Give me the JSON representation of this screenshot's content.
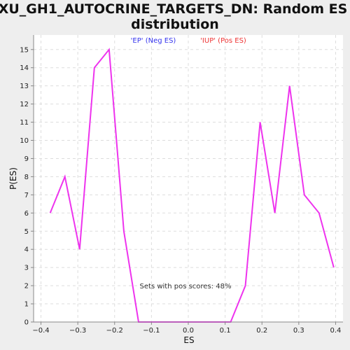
{
  "chart_data": {
    "type": "line",
    "title_line1": "XU_GH1_AUTOCRINE_TARGETS_DN: Random ES",
    "title_line2": "distribution",
    "legend_neg": "'EP' (Neg ES)",
    "legend_pos": "'IUP' (Pos ES)",
    "xlabel": "ES",
    "ylabel": "P(ES)",
    "annotation": "Sets with pos scores: 48%",
    "xlim": [
      -0.42,
      0.42
    ],
    "ylim": [
      0,
      15.8
    ],
    "grid": true,
    "x_ticks": [
      {
        "value": -0.4,
        "label": "−0.4"
      },
      {
        "value": -0.3,
        "label": "−0.3"
      },
      {
        "value": -0.2,
        "label": "−0.2"
      },
      {
        "value": -0.1,
        "label": "−0.1"
      },
      {
        "value": 0.0,
        "label": "0.0"
      },
      {
        "value": 0.1,
        "label": "0.1"
      },
      {
        "value": 0.2,
        "label": "0.2"
      },
      {
        "value": 0.3,
        "label": "0.3"
      },
      {
        "value": 0.4,
        "label": "0.4"
      }
    ],
    "y_ticks": [
      0,
      1,
      2,
      3,
      4,
      5,
      6,
      7,
      8,
      9,
      10,
      11,
      12,
      13,
      14,
      15
    ],
    "series": [
      {
        "color": "#ee33ee",
        "x": [
          -0.375,
          -0.335,
          -0.295,
          -0.255,
          -0.215,
          -0.175,
          -0.135,
          -0.095,
          -0.055,
          -0.015,
          0.025,
          0.075,
          0.115,
          0.155,
          0.195,
          0.235,
          0.275,
          0.315,
          0.355,
          0.395
        ],
        "y": [
          6,
          8,
          4,
          14,
          15,
          5,
          0,
          0,
          0,
          0,
          0,
          0,
          0,
          2,
          11,
          6,
          13,
          7,
          6,
          3
        ]
      }
    ]
  }
}
